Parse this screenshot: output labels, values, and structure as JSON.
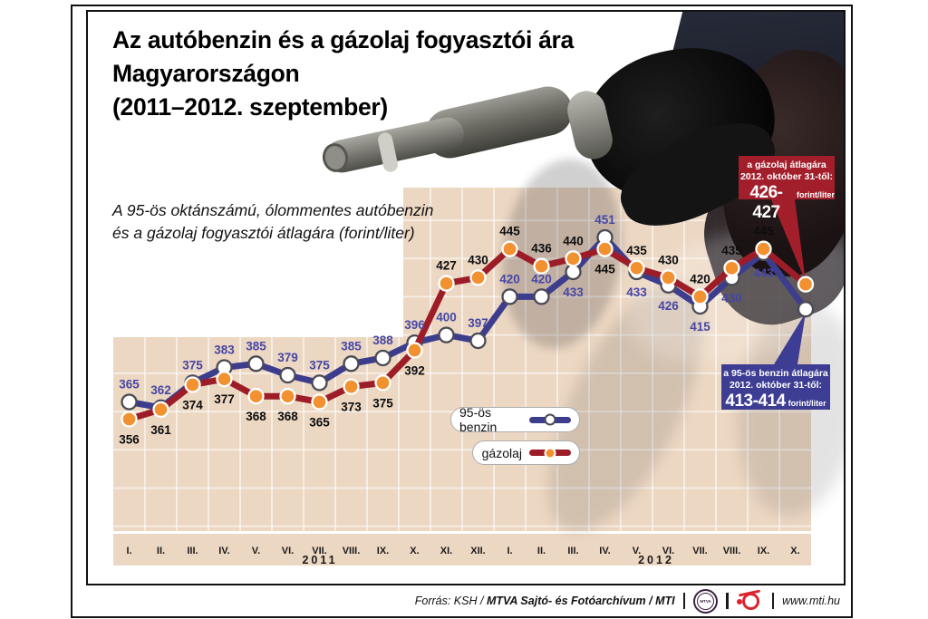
{
  "title": {
    "lines": [
      "Az autóbenzin és a gázolaj fogyasztói ára",
      "Magyarországon",
      "(2011–2012. szeptember)"
    ]
  },
  "subtitle": {
    "lines": [
      "A 95-ös oktánszámú, ólommentes autóbenzin",
      "és a gázolaj fogyasztói átlagára (forint/liter)"
    ]
  },
  "chart_data": {
    "type": "line",
    "unit": "forint/liter",
    "ylim": [
      300,
      470
    ],
    "grid": true,
    "x_groups": [
      {
        "year": "2011",
        "months": [
          "I.",
          "II.",
          "III.",
          "IV.",
          "V.",
          "VI.",
          "VII.",
          "VIII.",
          "IX.",
          "X.",
          "XI.",
          "XII."
        ]
      },
      {
        "year": "2012",
        "months": [
          "I.",
          "II.",
          "III.",
          "IV.",
          "V.",
          "VI.",
          "VII.",
          "VIII.",
          "IX.",
          "X."
        ]
      }
    ],
    "series": [
      {
        "name": "95-ös benzin",
        "color": "#3d3d8e",
        "marker_fill": "#ffffff",
        "marker_stroke": "#4a4a55",
        "label_color": "#4646a5",
        "values": [
          365,
          362,
          375,
          383,
          385,
          379,
          375,
          385,
          388,
          396,
          400,
          397,
          420,
          420,
          433,
          451,
          433,
          426,
          415,
          430,
          443,
          413.5
        ],
        "labels": [
          "365",
          "362",
          "375",
          "383",
          "385",
          "379",
          "375",
          "385",
          "388",
          "396",
          "400",
          "397",
          "420",
          "420",
          "433",
          "451",
          "433",
          "426",
          "415",
          "430",
          "443",
          ""
        ],
        "label_sides": [
          "a",
          "a",
          "a",
          "a",
          "a",
          "a",
          "a",
          "a",
          "a",
          "a",
          "a",
          "a",
          "a",
          "a",
          "b",
          "a",
          "b",
          "b",
          "b",
          "b",
          "b",
          ""
        ]
      },
      {
        "name": "gázolaj",
        "color": "#9c1d28",
        "marker_fill": "#f19130",
        "marker_stroke": "#ffffff",
        "label_color": "#0d0d0d",
        "values": [
          356,
          361,
          374,
          377,
          368,
          368,
          365,
          373,
          375,
          392,
          427,
          430,
          445,
          436,
          440,
          445,
          435,
          430,
          420,
          435,
          445,
          426.5
        ],
        "labels": [
          "356",
          "361",
          "374",
          "377",
          "368",
          "368",
          "365",
          "373",
          "375",
          "392",
          "427",
          "430",
          "445",
          "436",
          "440",
          "445",
          "435",
          "430",
          "420",
          "435",
          "445",
          ""
        ],
        "label_sides": [
          "b",
          "b",
          "b",
          "b",
          "b",
          "b",
          "b",
          "b",
          "b",
          "b",
          "a",
          "a",
          "a",
          "a",
          "a",
          "b",
          "a",
          "a",
          "a",
          "a",
          "a",
          ""
        ]
      }
    ]
  },
  "callouts": {
    "diesel": {
      "line1": "a gázolaj átlagára",
      "line2": "2012. október 31-től:",
      "value": "426-427",
      "unit": "forint/liter",
      "color": "#a31e2b"
    },
    "petrol": {
      "line1": "a 95-ös benzin átlagára",
      "line2": "2012. október 31-től:",
      "value": "413-414",
      "unit": "forint/liter",
      "color": "#3d3d94"
    }
  },
  "legend": {
    "items": [
      {
        "label": "95-ös benzin"
      },
      {
        "label": "gázolaj"
      }
    ]
  },
  "footer": {
    "source_prefix": "Forrás: KSH /",
    "source_bold": "MTVA Sajtó- és Fotóarchívum / MTI",
    "url": "www.mti.hu",
    "mtva_logo_text": "MTVA"
  }
}
